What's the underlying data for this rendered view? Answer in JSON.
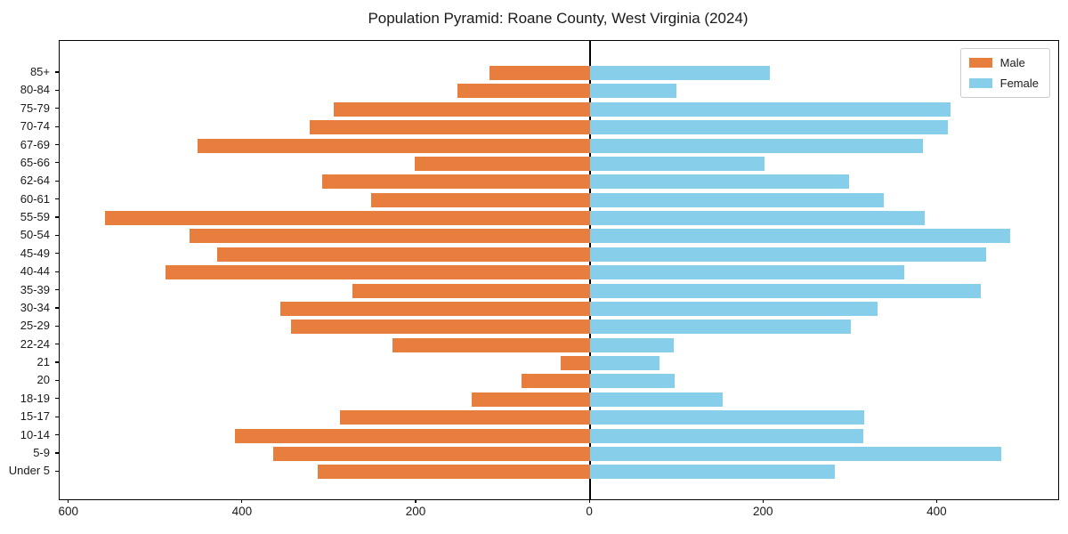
{
  "title": "Population Pyramid: Roane County, West Virginia (2024)",
  "legend": {
    "male": "Male",
    "female": "Female"
  },
  "colors": {
    "male": "#e87e3e",
    "female": "#87ceeb",
    "axis": "#000000",
    "text": "#1a1a1a",
    "legend_border": "#cccccc",
    "background": "#ffffff"
  },
  "chart_data": {
    "type": "bar",
    "subtype": "population-pyramid",
    "title": "Population Pyramid: Roane County, West Virginia (2024)",
    "xlabel": "",
    "ylabel": "",
    "categories": [
      "85+",
      "80-84",
      "75-79",
      "70-74",
      "67-69",
      "65-66",
      "62-64",
      "60-61",
      "55-59",
      "50-54",
      "45-49",
      "40-44",
      "35-39",
      "30-34",
      "25-29",
      "22-24",
      "21",
      "20",
      "18-19",
      "15-17",
      "10-14",
      "5-9",
      "Under 5"
    ],
    "series": [
      {
        "name": "Male",
        "side": "left",
        "color": "#e87e3e",
        "values": [
          116,
          153,
          295,
          323,
          452,
          202,
          309,
          252,
          559,
          461,
          430,
          489,
          274,
          357,
          345,
          228,
          34,
          79,
          136,
          288,
          409,
          365,
          314
        ]
      },
      {
        "name": "Female",
        "side": "right",
        "color": "#87ceeb",
        "values": [
          207,
          99,
          415,
          412,
          383,
          201,
          298,
          338,
          385,
          484,
          456,
          362,
          450,
          331,
          300,
          96,
          80,
          97,
          153,
          316,
          315,
          473,
          282
        ]
      }
    ],
    "x_ticks": [
      -600,
      -400,
      -200,
      0,
      200,
      400
    ],
    "x_tick_labels": [
      "600",
      "400",
      "200",
      "0",
      "200",
      "400"
    ],
    "xlim": [
      -611,
      539
    ],
    "grid": false,
    "legend_position": "upper right",
    "zero_line": true
  }
}
